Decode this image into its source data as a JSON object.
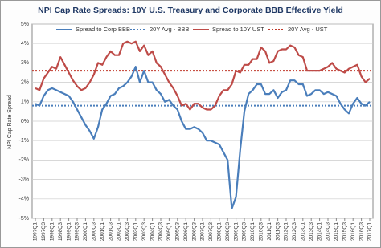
{
  "chart_data": {
    "type": "line",
    "title": "NPI Cap Rate Spreads: 10Y U.S. Treasury and Corporate BBB Effective Yield",
    "y_label": "NPI Cap Rate Spread",
    "categories": [
      "1997Q1",
      null,
      "1997Q3",
      null,
      "1998Q1",
      null,
      "1998Q3",
      null,
      "1999Q1",
      null,
      "1999Q3",
      null,
      "2000Q1",
      null,
      "2000Q3",
      null,
      "2001Q1",
      null,
      "2001Q3",
      null,
      "2002Q1",
      null,
      "2002Q3",
      null,
      "2003Q1",
      null,
      "2003Q3",
      null,
      "2004Q1",
      null,
      "2004Q3",
      null,
      "2005Q1",
      null,
      "2005Q3",
      null,
      "2006Q1",
      null,
      "2006Q3",
      null,
      "2007Q1",
      null,
      "2007Q3",
      null,
      "2008Q1",
      null,
      "2008Q3",
      null,
      "2009Q1",
      null,
      "2009Q3",
      null,
      "2010Q1",
      null,
      "2010Q3",
      null,
      "2011Q1",
      null,
      "2011Q3",
      null,
      "2012Q1",
      null,
      "2012Q3",
      null,
      "2013Q1",
      null,
      "2013Q3",
      null,
      "2014Q1",
      null,
      "2014Q3",
      null,
      "2015Q1",
      null,
      "2015Q3",
      null,
      "2016Q1",
      null,
      "2016Q3",
      null,
      "2017Q1"
    ],
    "series": [
      {
        "name": "Spread to Corp BBB",
        "color": "#4a7ebb",
        "values": [
          0.9,
          0.8,
          1.3,
          1.6,
          1.7,
          1.6,
          1.5,
          1.4,
          1.3,
          1.0,
          0.6,
          0.2,
          -0.2,
          -0.5,
          -0.9,
          -0.3,
          0.6,
          0.9,
          1.3,
          1.4,
          1.7,
          1.8,
          2.0,
          2.3,
          2.8,
          2.0,
          2.6,
          2.0,
          2.0,
          1.6,
          1.4,
          1.0,
          1.1,
          0.8,
          0.6,
          0.0,
          -0.4,
          -0.4,
          -0.3,
          -0.4,
          -0.6,
          -1.0,
          -1.0,
          -1.1,
          -1.2,
          -1.6,
          -2.0,
          -4.5,
          -3.9,
          -1.5,
          0.5,
          1.4,
          1.6,
          1.9,
          1.9,
          1.4,
          1.4,
          1.6,
          1.2,
          1.5,
          1.6,
          2.1,
          2.1,
          1.9,
          1.9,
          1.3,
          1.4,
          1.6,
          1.6,
          1.4,
          1.5,
          1.4,
          1.3,
          0.9,
          0.6,
          0.4,
          0.9,
          1.2,
          0.9,
          0.8,
          1.0
        ]
      },
      {
        "name": "Spread to 10Y UST",
        "color": "#be4b48",
        "values": [
          1.7,
          1.6,
          2.2,
          2.5,
          2.8,
          2.7,
          3.3,
          2.9,
          2.5,
          2.1,
          1.8,
          1.6,
          1.7,
          2.0,
          2.4,
          3.0,
          2.9,
          3.3,
          3.6,
          3.4,
          3.4,
          4.0,
          4.1,
          4.0,
          4.1,
          3.6,
          3.9,
          3.4,
          3.6,
          3.0,
          2.8,
          2.4,
          2.0,
          1.7,
          1.3,
          0.8,
          0.9,
          0.6,
          0.9,
          0.9,
          0.7,
          0.6,
          0.6,
          0.8,
          1.3,
          1.6,
          1.6,
          1.9,
          2.6,
          2.5,
          2.9,
          2.9,
          3.2,
          3.2,
          3.8,
          3.6,
          3.0,
          3.1,
          3.6,
          3.7,
          3.7,
          3.9,
          3.8,
          3.4,
          3.3,
          2.6,
          2.6,
          2.6,
          2.6,
          2.7,
          2.8,
          3.0,
          2.7,
          2.6,
          2.5,
          2.7,
          2.8,
          2.9,
          2.3,
          2.0,
          2.2
        ]
      }
    ],
    "reference_lines": [
      {
        "name": "20Y Avg - BBB",
        "color": "#4a7ebb",
        "value": 0.8
      },
      {
        "name": "20Y Avg - UST",
        "color": "#c0392b",
        "value": 2.6
      }
    ],
    "ylim": [
      -5,
      5
    ],
    "yticks": [
      {
        "value": -5,
        "label": "-5%"
      },
      {
        "value": -4,
        "label": "-4%"
      },
      {
        "value": -3,
        "label": "-3%"
      },
      {
        "value": -2,
        "label": "-2%"
      },
      {
        "value": -1,
        "label": "-1%"
      },
      {
        "value": 0,
        "label": "0%"
      },
      {
        "value": 1,
        "label": "1%"
      },
      {
        "value": 2,
        "label": "2%"
      },
      {
        "value": 3,
        "label": "3%"
      },
      {
        "value": 4,
        "label": "4%"
      },
      {
        "value": 5,
        "label": "5%"
      }
    ],
    "grid": true,
    "legend": "top"
  }
}
